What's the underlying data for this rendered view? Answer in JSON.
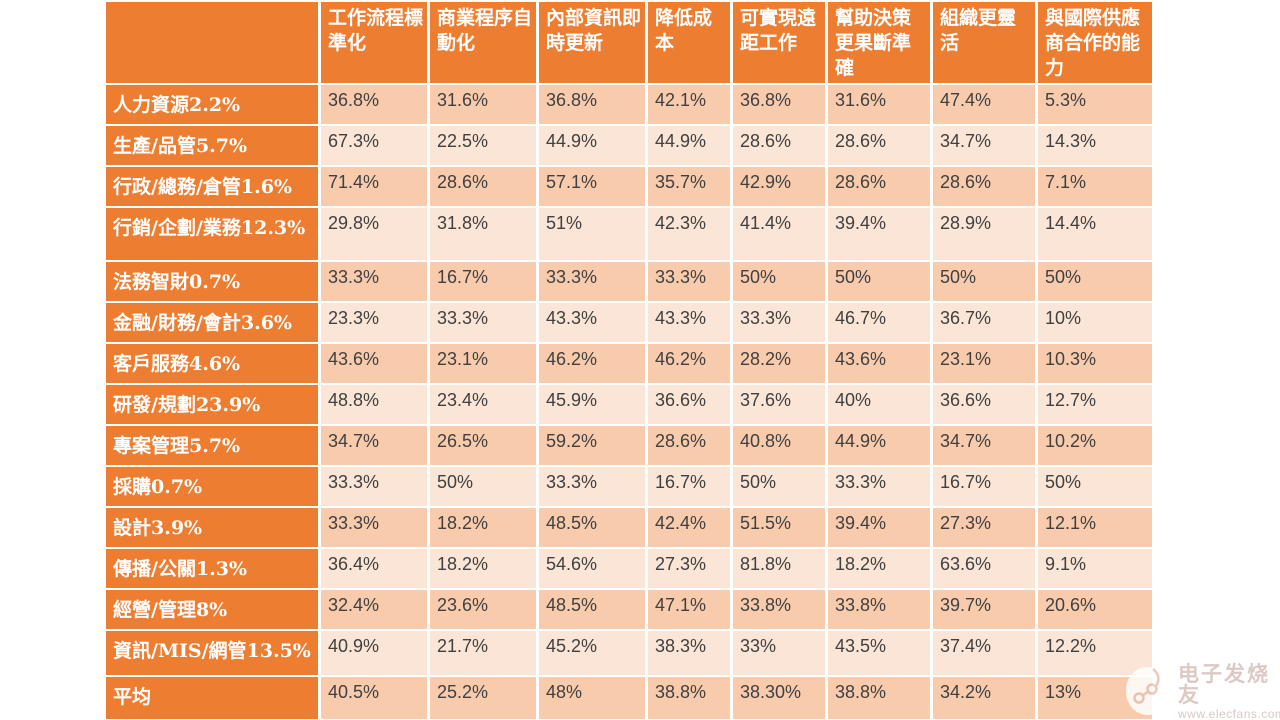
{
  "chart_data": {
    "type": "table",
    "columns": [
      "工作流程標準化",
      "商業程序自動化",
      "內部資訊即時更新",
      "降低成本",
      "可實現遠距工作",
      "幫助決策更果斷準確",
      "組織更靈活",
      "與國際供應商合作的能力"
    ],
    "corner_label": "",
    "rows": [
      {
        "label": "人力資源2.2%",
        "values": [
          "36.8%",
          "31.6%",
          "36.8%",
          "42.1%",
          "36.8%",
          "31.6%",
          "47.4%",
          "5.3%"
        ]
      },
      {
        "label": "生產/品管5.7%",
        "values": [
          "67.3%",
          "22.5%",
          "44.9%",
          "44.9%",
          "28.6%",
          "28.6%",
          "34.7%",
          "14.3%"
        ]
      },
      {
        "label": "行政/總務/倉管1.6%",
        "values": [
          "71.4%",
          "28.6%",
          "57.1%",
          "35.7%",
          "42.9%",
          "28.6%",
          "28.6%",
          "7.1%"
        ]
      },
      {
        "label": "行銷/企劃/業務12.3%",
        "values": [
          "29.8%",
          "31.8%",
          "51%",
          "42.3%",
          "41.4%",
          "39.4%",
          "28.9%",
          "14.4%"
        ]
      },
      {
        "label": "法務智財0.7%",
        "values": [
          "33.3%",
          "16.7%",
          "33.3%",
          "33.3%",
          "50%",
          "50%",
          "50%",
          "50%"
        ]
      },
      {
        "label": "金融/財務/會計3.6%",
        "values": [
          "23.3%",
          "33.3%",
          "43.3%",
          "43.3%",
          "33.3%",
          "46.7%",
          "36.7%",
          "10%"
        ]
      },
      {
        "label": "客戶服務4.6%",
        "values": [
          "43.6%",
          "23.1%",
          "46.2%",
          "46.2%",
          "28.2%",
          "43.6%",
          "23.1%",
          "10.3%"
        ]
      },
      {
        "label": "研發/規劃23.9%",
        "values": [
          "48.8%",
          "23.4%",
          "45.9%",
          "36.6%",
          "37.6%",
          "40%",
          "36.6%",
          "12.7%"
        ]
      },
      {
        "label": "專案管理5.7%",
        "values": [
          "34.7%",
          "26.5%",
          "59.2%",
          "28.6%",
          "40.8%",
          "44.9%",
          "34.7%",
          "10.2%"
        ]
      },
      {
        "label": "採購0.7%",
        "values": [
          "33.3%",
          "50%",
          "33.3%",
          "16.7%",
          "50%",
          "33.3%",
          "16.7%",
          "50%"
        ]
      },
      {
        "label": "設計3.9%",
        "values": [
          "33.3%",
          "18.2%",
          "48.5%",
          "42.4%",
          "51.5%",
          "39.4%",
          "27.3%",
          "12.1%"
        ]
      },
      {
        "label": "傳播/公關1.3%",
        "values": [
          "36.4%",
          "18.2%",
          "54.6%",
          "27.3%",
          "81.8%",
          "18.2%",
          "63.6%",
          "9.1%"
        ]
      },
      {
        "label": "經營/管理8%",
        "values": [
          "32.4%",
          "23.6%",
          "48.5%",
          "47.1%",
          "33.8%",
          "33.8%",
          "39.7%",
          "20.6%"
        ]
      },
      {
        "label": "資訊/MIS/網管13.5%",
        "values": [
          "40.9%",
          "21.7%",
          "45.2%",
          "38.3%",
          "33%",
          "43.5%",
          "37.4%",
          "12.2%"
        ]
      },
      {
        "label": "平均",
        "values": [
          "40.5%",
          "25.2%",
          "48%",
          "38.8%",
          "38.30%",
          "38.8%",
          "34.2%",
          "13%"
        ]
      }
    ]
  },
  "colors": {
    "header": "#ED7D31",
    "band_dark": "#F8CBAD",
    "band_light": "#FBE5D6",
    "text": "#404040",
    "header_text": "#FFFFFF"
  },
  "watermark": {
    "brand": "电子发烧友",
    "url": "www.elecfans.com"
  }
}
